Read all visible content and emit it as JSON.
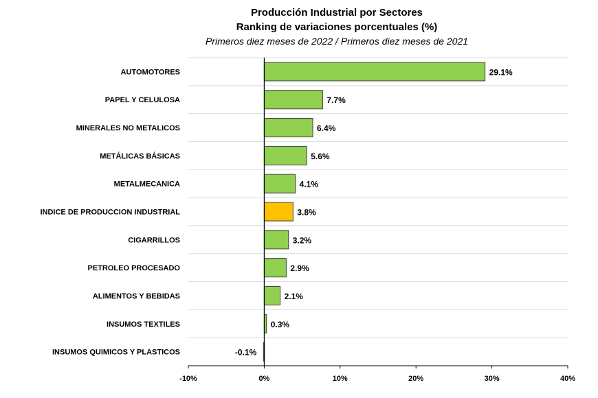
{
  "chart_data": {
    "type": "bar",
    "orientation": "horizontal",
    "title": "Producción Industrial por Sectores",
    "subtitle": "Ranking de variaciones porcentuales (%)",
    "note": "Primeros diez meses de 2022 / Primeros diez meses de 2021",
    "categories": [
      "AUTOMOTORES",
      "PAPEL Y CELULOSA",
      "MINERALES NO METALICOS",
      "METÁLICAS BÁSICAS",
      "METALMECANICA",
      "INDICE DE PRODUCCION INDUSTRIAL",
      "CIGARRILLOS",
      "PETROLEO PROCESADO",
      "ALIMENTOS Y BEBIDAS",
      "INSUMOS TEXTILES",
      "INSUMOS QUIMICOS Y PLASTICOS"
    ],
    "values": [
      29.1,
      7.7,
      6.4,
      5.6,
      4.1,
      3.8,
      3.2,
      2.9,
      2.1,
      0.3,
      -0.1
    ],
    "value_labels": [
      "29.1%",
      "7.7%",
      "6.4%",
      "5.6%",
      "4.1%",
      "3.8%",
      "3.2%",
      "2.9%",
      "2.1%",
      "0.3%",
      "-0.1%"
    ],
    "highlight_category": "INDICE DE PRODUCCION INDUSTRIAL",
    "xlim": [
      -10,
      40
    ],
    "xticks": [
      -10,
      0,
      10,
      20,
      30,
      40
    ],
    "xtick_labels": [
      "-10%",
      "0%",
      "10%",
      "20%",
      "30%",
      "40%"
    ],
    "grid": "horizontal",
    "legend": "none",
    "colors": {
      "bar": "#92d050",
      "highlight": "#ffc000",
      "bar_edge": "#404040",
      "grid": "#d9d9d9",
      "axis": "#000000"
    }
  }
}
